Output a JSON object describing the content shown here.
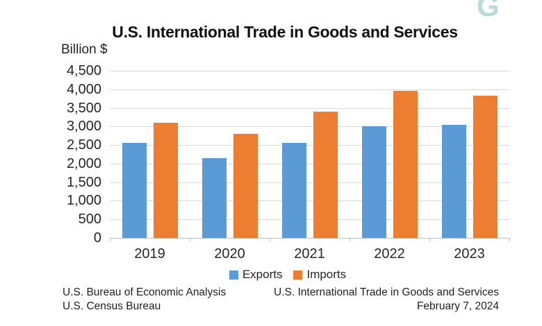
{
  "watermark": {
    "letter": "G",
    "color": "#b6dbd9"
  },
  "chart_data": {
    "type": "bar",
    "title": "U.S. International Trade in Goods and Services",
    "ylabel": "Billion $",
    "xlabel": "",
    "categories": [
      "2019",
      "2020",
      "2021",
      "2022",
      "2023"
    ],
    "series": [
      {
        "name": "Exports",
        "color": "#5b9bd5",
        "values": [
          2550,
          2150,
          2550,
          3000,
          3050
        ]
      },
      {
        "name": "Imports",
        "color": "#ed7d31",
        "values": [
          3100,
          2800,
          3400,
          3950,
          3820
        ]
      }
    ],
    "ylim": [
      0,
      4500
    ],
    "ytick_step": 500,
    "grid": true,
    "legend_position": "bottom",
    "gridline_color": "#d9d9d9",
    "axis_color": "#bfbfbf"
  },
  "footer": {
    "source_line1": "U.S. Bureau of Economic Analysis",
    "source_line2": "U.S. Census Bureau",
    "note_line1": "U.S. International Trade in Goods and Services",
    "note_line2": "February 7, 2024"
  }
}
